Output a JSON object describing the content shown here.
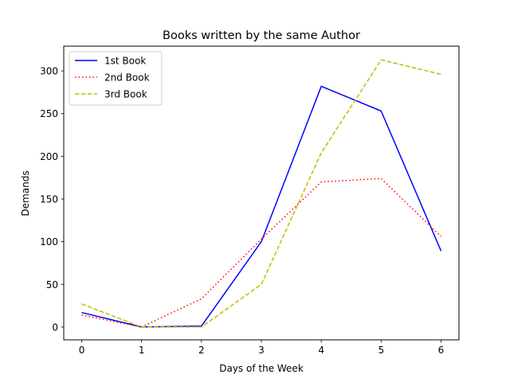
{
  "chart_data": {
    "type": "line",
    "title": "Books written by the same Author",
    "xlabel": "Days of the Week",
    "ylabel": "Demands",
    "x": [
      0,
      1,
      2,
      3,
      4,
      5,
      6
    ],
    "xlim": [
      -0.3,
      6.3
    ],
    "ylim": [
      -15,
      329
    ],
    "xticks": [
      "0",
      "1",
      "2",
      "3",
      "4",
      "5",
      "6"
    ],
    "yticks": [
      "0",
      "50",
      "100",
      "150",
      "200",
      "250",
      "300"
    ],
    "grid": false,
    "legend_position": "top-left",
    "series": [
      {
        "name": "1st Book",
        "values": [
          17,
          0,
          1,
          100,
          282,
          253,
          89
        ],
        "color": "#0000ff",
        "line_style": "solid"
      },
      {
        "name": "2nd Book",
        "values": [
          14,
          0,
          33,
          103,
          170,
          174,
          106
        ],
        "color": "#ff0000",
        "line_style": "dotted"
      },
      {
        "name": "3rd Book",
        "values": [
          27,
          0,
          0,
          50,
          204,
          313,
          296
        ],
        "color": "#bfbf00",
        "line_style": "dashed"
      }
    ]
  }
}
